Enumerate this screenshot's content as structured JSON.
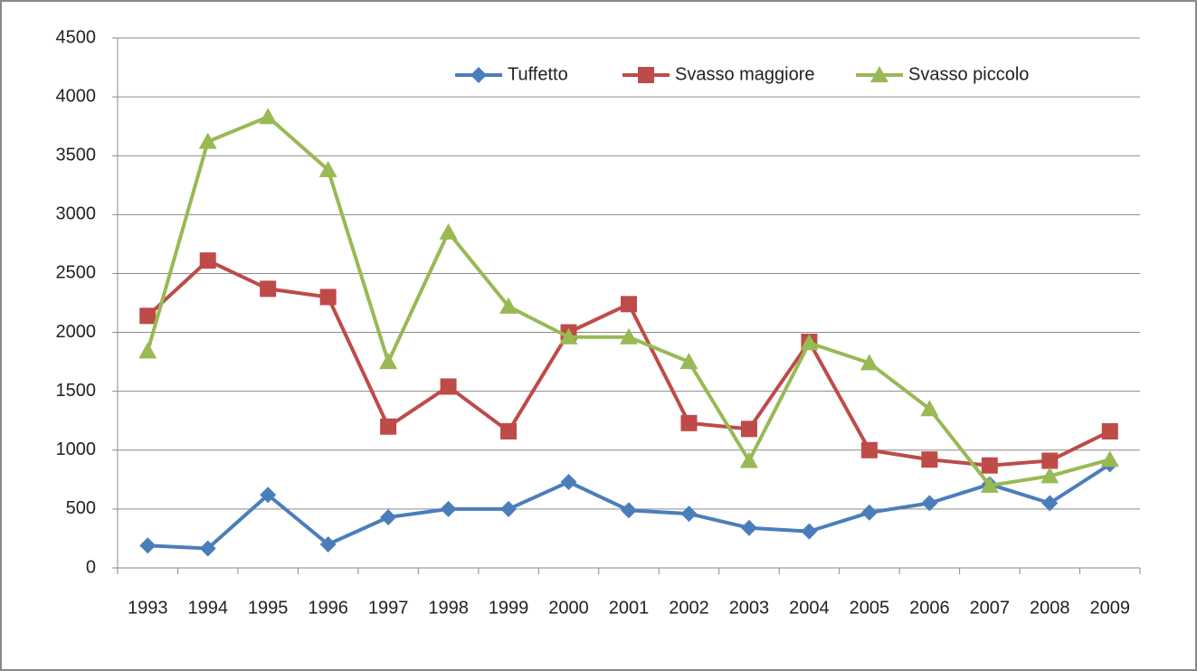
{
  "chart_data": {
    "type": "line",
    "categories": [
      "1993",
      "1994",
      "1995",
      "1996",
      "1997",
      "1998",
      "1999",
      "2000",
      "2001",
      "2002",
      "2003",
      "2004",
      "2005",
      "2006",
      "2007",
      "2008",
      "2009"
    ],
    "series": [
      {
        "name": "Tuffetto",
        "color": "#4a7ebb",
        "marker": "diamond",
        "values": [
          190,
          165,
          620,
          200,
          430,
          500,
          500,
          730,
          490,
          460,
          340,
          310,
          470,
          550,
          710,
          550,
          880
        ]
      },
      {
        "name": "Svasso maggiore",
        "color": "#be4b48",
        "marker": "square",
        "values": [
          2140,
          2610,
          2370,
          2300,
          1200,
          1540,
          1160,
          2000,
          2240,
          1230,
          1180,
          1920,
          1000,
          920,
          870,
          910,
          1160
        ]
      },
      {
        "name": "Svasso piccolo",
        "color": "#98b954",
        "marker": "triangle",
        "values": [
          1840,
          3620,
          3830,
          3380,
          1750,
          2850,
          2220,
          1960,
          1960,
          1750,
          910,
          1910,
          1740,
          1350,
          700,
          780,
          920
        ]
      }
    ],
    "ylim": [
      0,
      4500
    ],
    "yticks": [
      0,
      500,
      1000,
      1500,
      2000,
      2500,
      3000,
      3500,
      4000,
      4500
    ],
    "grid": true,
    "legend": "top-right"
  }
}
